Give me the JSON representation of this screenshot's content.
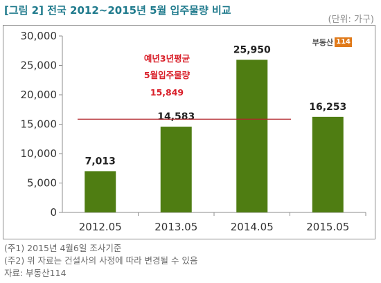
{
  "header": {
    "title": "[그림 2] 전국 2012~2015년 5월 입주물량 비교",
    "unit": "(단위: 가구)"
  },
  "logo": {
    "text": "부동산",
    "badge": "114"
  },
  "annotation": {
    "line1": "예년3년평균",
    "line2": "5월입주물량",
    "value": "15,849",
    "average_value": 15849,
    "color": "#d9202a"
  },
  "notes": [
    "(주1) 2015년 4월6일 조사기준",
    "(주2) 위 자료는 건설사의 사정에 따라 변경될 수 있음",
    "자료: 부동산114"
  ],
  "chart_data": {
    "type": "bar",
    "categories": [
      "2012.05",
      "2013.05",
      "2014.05",
      "2015.05"
    ],
    "values": [
      7013,
      14583,
      25950,
      16253
    ],
    "value_labels": [
      "7,013",
      "14,583",
      "25,950",
      "16,253"
    ],
    "ylim": [
      0,
      30000
    ],
    "yticks": [
      0,
      5000,
      10000,
      15000,
      20000,
      25000,
      30000
    ],
    "ytick_labels": [
      "0",
      "5,000",
      "10,000",
      "15,000",
      "20,000",
      "25,000",
      "30,000"
    ],
    "bar_color": "#4f7d12",
    "line_color": "#b3262b",
    "grid": false,
    "legend": "none"
  }
}
